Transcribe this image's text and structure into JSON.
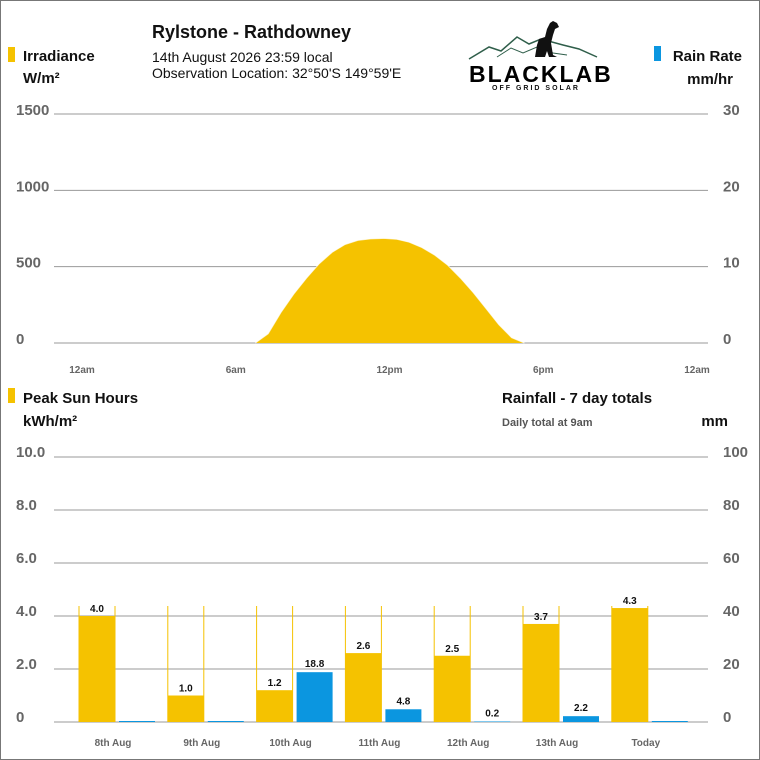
{
  "header": {
    "title": "Rylstone - Rathdowney",
    "datetime": "14th August 2026  23:59 local",
    "location": "Observation Location: 32°50'S 149°59'E"
  },
  "logo": {
    "brand": "BLACKLAB",
    "tagline": "OFF GRID SOLAR"
  },
  "colors": {
    "yellow": "#f5c200",
    "blue": "#0b96e0",
    "grid": "#999999",
    "axis_text": "#666666"
  },
  "chart_data": [
    {
      "type": "area",
      "legend_left": {
        "label": "Irradiance",
        "unit": "W/m²"
      },
      "legend_right": {
        "label": "Rain Rate",
        "unit": "mm/hr"
      },
      "y_left_ticks": [
        "1500",
        "1000",
        "500",
        "0"
      ],
      "y_right_ticks": [
        "30",
        "20",
        "10",
        "0"
      ],
      "ylim_left": [
        0,
        1500
      ],
      "ylim_right": [
        0,
        30
      ],
      "x_ticks": [
        "12am",
        "6am",
        "12pm",
        "6pm",
        "12am"
      ],
      "xlim_hours": [
        0,
        24
      ],
      "grid": true,
      "series": [
        {
          "x_hours": [
            7.0,
            7.5,
            8.0,
            8.5,
            9.0,
            9.5,
            10.0,
            10.5,
            11.0,
            11.5,
            12.0,
            12.5,
            13.0,
            13.5,
            14.0,
            14.5,
            15.0,
            15.5,
            16.0,
            16.5,
            17.0,
            17.5
          ],
          "values": [
            0,
            60,
            200,
            320,
            425,
            520,
            595,
            645,
            672,
            682,
            685,
            680,
            660,
            625,
            575,
            510,
            425,
            330,
            225,
            120,
            35,
            0
          ]
        }
      ]
    },
    {
      "type": "bar",
      "legend_left": {
        "label": "Peak Sun Hours",
        "unit": "kWh/m²"
      },
      "right_title": "Rainfall - 7 day totals",
      "right_note": "Daily total at 9am",
      "right_unit": "mm",
      "y_left_ticks": [
        "10.0",
        "8.0",
        "6.0",
        "4.0",
        "2.0",
        "0"
      ],
      "y_right_ticks": [
        "100",
        "80",
        "60",
        "40",
        "20",
        "0"
      ],
      "ylim_left": [
        0,
        10
      ],
      "ylim_right": [
        0,
        100
      ],
      "grid": true,
      "categories": [
        "8th Aug",
        "9th Aug",
        "10th Aug",
        "11th Aug",
        "12th Aug",
        "13th Aug",
        "Today"
      ],
      "series": [
        {
          "axis": "left",
          "values": [
            4.0,
            1.0,
            1.2,
            2.6,
            2.5,
            3.7,
            4.3
          ],
          "labels": [
            "4.0",
            "1.0",
            "1.2",
            "2.6",
            "2.5",
            "3.7",
            "4.3"
          ]
        },
        {
          "axis": "right",
          "values": [
            0,
            0,
            18.8,
            4.8,
            0.2,
            2.2,
            0
          ],
          "labels": [
            "",
            "",
            "18.8",
            "4.8",
            "0.2",
            "2.2",
            ""
          ]
        }
      ]
    }
  ]
}
